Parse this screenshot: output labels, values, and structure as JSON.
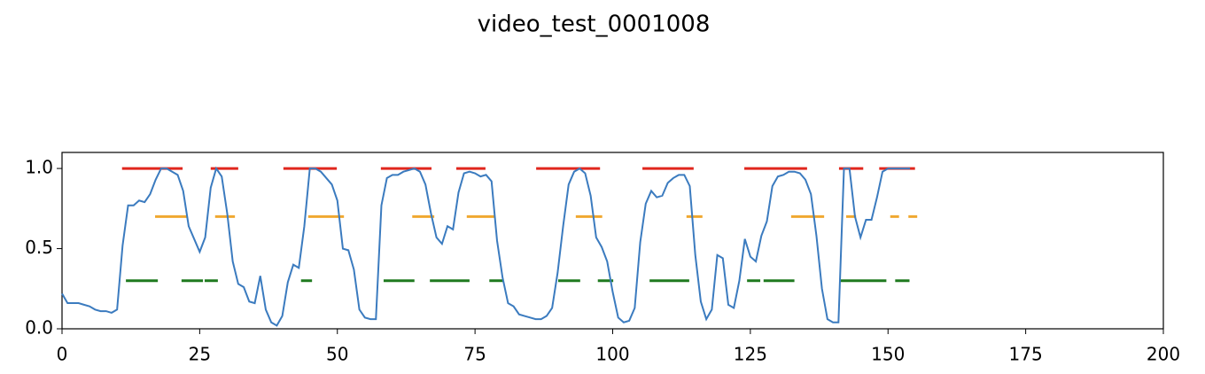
{
  "chart_data": {
    "type": "line",
    "title": "video_test_0001008",
    "xlim": [
      0,
      200
    ],
    "ylim": [
      0,
      1.1
    ],
    "xticks": [
      0,
      25,
      50,
      75,
      100,
      125,
      150,
      175,
      200
    ],
    "yticks": [
      {
        "value": 0,
        "label": "0.0"
      },
      {
        "value": 0.5,
        "label": "0.5"
      },
      {
        "value": 1,
        "label": "1.0"
      }
    ],
    "series": [
      {
        "color": "#3b7bbf",
        "x": [
          0,
          1,
          2,
          3,
          4,
          5,
          6,
          7,
          8,
          9,
          10,
          11,
          12,
          13,
          14,
          15,
          16,
          17,
          18,
          19,
          20,
          21,
          22,
          23,
          24,
          25,
          26,
          27,
          28,
          29,
          30,
          31,
          32,
          33,
          34,
          35,
          36,
          37,
          38,
          39,
          40,
          41,
          42,
          43,
          44,
          45,
          46,
          47,
          48,
          49,
          50,
          51,
          52,
          53,
          54,
          55,
          56,
          57,
          58,
          59,
          60,
          61,
          62,
          63,
          64,
          65,
          66,
          67,
          68,
          69,
          70,
          71,
          72,
          73,
          74,
          75,
          76,
          77,
          78,
          79,
          80,
          81,
          82,
          83,
          84,
          85,
          86,
          87,
          88,
          89,
          90,
          91,
          92,
          93,
          94,
          95,
          96,
          97,
          98,
          99,
          100,
          101,
          102,
          103,
          104,
          105,
          106,
          107,
          108,
          109,
          110,
          111,
          112,
          113,
          114,
          115,
          116,
          117,
          118,
          119,
          120,
          121,
          122,
          123,
          124,
          125,
          126,
          127,
          128,
          129,
          130,
          131,
          132,
          133,
          134,
          135,
          136,
          137,
          138,
          139,
          140,
          141,
          142,
          143,
          144,
          145,
          146,
          147,
          148,
          149,
          150,
          151,
          152,
          153,
          154
        ],
        "values": [
          0.22,
          0.16,
          0.16,
          0.16,
          0.15,
          0.14,
          0.12,
          0.11,
          0.11,
          0.1,
          0.12,
          0.52,
          0.77,
          0.77,
          0.8,
          0.79,
          0.84,
          0.93,
          1.0,
          1.0,
          0.98,
          0.96,
          0.86,
          0.64,
          0.56,
          0.48,
          0.57,
          0.88,
          1.0,
          0.95,
          0.72,
          0.42,
          0.28,
          0.26,
          0.17,
          0.16,
          0.33,
          0.12,
          0.04,
          0.02,
          0.08,
          0.29,
          0.4,
          0.38,
          0.64,
          1.0,
          1.0,
          0.98,
          0.94,
          0.9,
          0.8,
          0.5,
          0.49,
          0.37,
          0.12,
          0.07,
          0.06,
          0.06,
          0.77,
          0.94,
          0.96,
          0.96,
          0.98,
          0.99,
          1.0,
          0.98,
          0.9,
          0.72,
          0.57,
          0.53,
          0.64,
          0.62,
          0.85,
          0.97,
          0.98,
          0.97,
          0.95,
          0.96,
          0.92,
          0.55,
          0.32,
          0.16,
          0.14,
          0.09,
          0.08,
          0.07,
          0.06,
          0.06,
          0.08,
          0.13,
          0.35,
          0.64,
          0.9,
          0.98,
          1.0,
          0.97,
          0.83,
          0.57,
          0.51,
          0.42,
          0.23,
          0.07,
          0.04,
          0.05,
          0.13,
          0.54,
          0.78,
          0.86,
          0.82,
          0.83,
          0.91,
          0.94,
          0.96,
          0.96,
          0.89,
          0.46,
          0.17,
          0.06,
          0.12,
          0.46,
          0.44,
          0.15,
          0.13,
          0.3,
          0.56,
          0.45,
          0.42,
          0.58,
          0.67,
          0.89,
          0.95,
          0.96,
          0.98,
          0.98,
          0.97,
          0.93,
          0.84,
          0.58,
          0.25,
          0.06,
          0.04,
          0.04,
          1.0,
          1.0,
          0.7,
          0.57,
          0.68,
          0.68,
          0.82,
          0.98,
          1.0,
          1.0,
          1.0,
          1.0,
          1.0
        ]
      }
    ],
    "segments": [
      {
        "color": "#e0261d",
        "y": 1.0,
        "ranges": [
          [
            10.9,
            21.9
          ],
          [
            27.0,
            32.0
          ],
          [
            40.2,
            49.9
          ],
          [
            57.9,
            67.1
          ],
          [
            71.6,
            76.9
          ],
          [
            86.1,
            97.7
          ],
          [
            105.4,
            114.7
          ],
          [
            123.9,
            135.3
          ],
          [
            141.1,
            145.5
          ],
          [
            148.4,
            154.9
          ]
        ]
      },
      {
        "color": "#f0a830",
        "y": 0.7,
        "ranges": [
          [
            16.9,
            22.8
          ],
          [
            27.8,
            31.4
          ],
          [
            44.7,
            51.2
          ],
          [
            63.6,
            67.6
          ],
          [
            73.5,
            78.5
          ],
          [
            93.3,
            98.1
          ],
          [
            113.4,
            116.3
          ],
          [
            132.4,
            138.4
          ],
          [
            142.4,
            144.2
          ],
          [
            150.4,
            152.0
          ],
          [
            153.7,
            155.3
          ]
        ]
      },
      {
        "color": "#1f7a1f",
        "y": 0.3,
        "ranges": [
          [
            11.6,
            17.4
          ],
          [
            21.7,
            25.6
          ],
          [
            25.9,
            28.3
          ],
          [
            43.4,
            45.4
          ],
          [
            58.4,
            64.0
          ],
          [
            66.8,
            74.0
          ],
          [
            77.6,
            80.1
          ],
          [
            90.1,
            94.1
          ],
          [
            97.3,
            100.1
          ],
          [
            106.7,
            113.9
          ],
          [
            124.4,
            126.8
          ],
          [
            127.4,
            133.0
          ],
          [
            141.3,
            149.7
          ],
          [
            151.3,
            153.9
          ]
        ]
      }
    ]
  }
}
